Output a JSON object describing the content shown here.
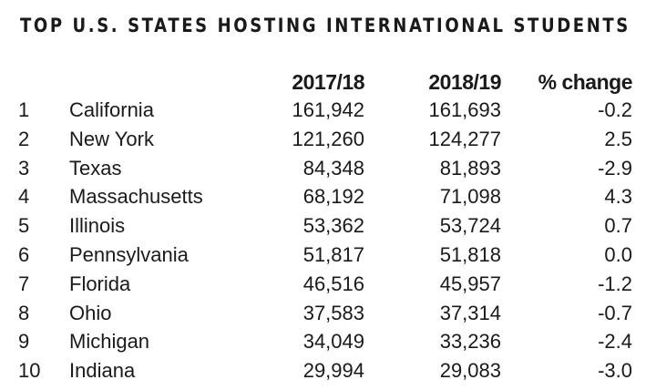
{
  "title": "TOP U.S. STATES HOSTING INTERNATIONAL STUDENTS",
  "columns": [
    "2017/18",
    "2018/19",
    "% change"
  ],
  "rows": [
    {
      "rank": "1",
      "state": "California",
      "y2017": "161,942",
      "y2018": "161,693",
      "change": "-0.2"
    },
    {
      "rank": "2",
      "state": "New York",
      "y2017": "121,260",
      "y2018": "124,277",
      "change": "2.5"
    },
    {
      "rank": "3",
      "state": "Texas",
      "y2017": "84,348",
      "y2018": "81,893",
      "change": "-2.9"
    },
    {
      "rank": "4",
      "state": "Massachusetts",
      "y2017": "68,192",
      "y2018": "71,098",
      "change": "4.3"
    },
    {
      "rank": "5",
      "state": "Illinois",
      "y2017": "53,362",
      "y2018": "53,724",
      "change": "0.7"
    },
    {
      "rank": "6",
      "state": "Pennsylvania",
      "y2017": "51,817",
      "y2018": "51,818",
      "change": "0.0"
    },
    {
      "rank": "7",
      "state": "Florida",
      "y2017": "46,516",
      "y2018": "45,957",
      "change": "-1.2"
    },
    {
      "rank": "8",
      "state": "Ohio",
      "y2017": "37,583",
      "y2018": "37,314",
      "change": "-0.7"
    },
    {
      "rank": "9",
      "state": "Michigan",
      "y2017": "34,049",
      "y2018": "33,236",
      "change": "-2.4"
    },
    {
      "rank": "10",
      "state": "Indiana",
      "y2017": "29,994",
      "y2018": "29,083",
      "change": "-3.0"
    }
  ]
}
